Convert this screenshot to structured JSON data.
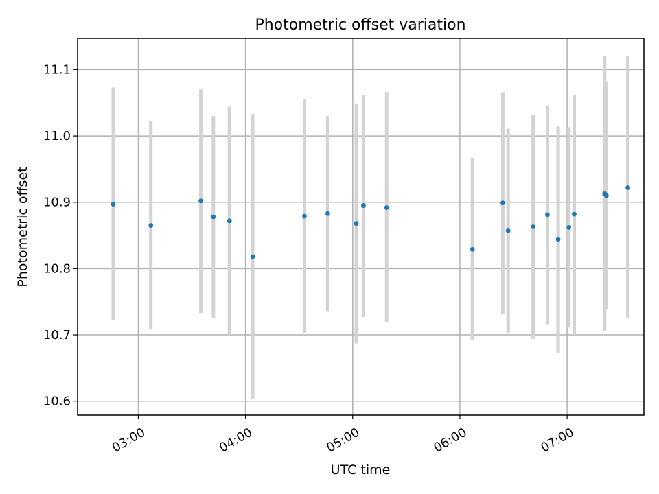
{
  "chart_data": {
    "type": "scatter",
    "title": "Photometric offset variation",
    "xlabel": "UTC time",
    "ylabel": "Photometric offset",
    "x_unit": "UTC time (HH:MM)",
    "xlim": [
      "02:26",
      "07:43"
    ],
    "ylim": [
      10.579,
      11.147
    ],
    "x_ticks": [
      "03:00",
      "04:00",
      "05:00",
      "06:00",
      "07:00"
    ],
    "y_ticks": [
      10.6,
      10.7,
      10.8,
      10.9,
      11.0,
      11.1
    ],
    "y_tick_labels": [
      "10.6",
      "10.7",
      "10.8",
      "10.9",
      "11.0",
      "11.1"
    ],
    "grid": true,
    "marker_color": "#1f77b4",
    "errorbar_color": "#d3d3d3",
    "points": [
      {
        "t": "02:46",
        "y": 10.897,
        "lo": 10.722,
        "hi": 11.073
      },
      {
        "t": "03:07",
        "y": 10.865,
        "lo": 10.708,
        "hi": 11.022
      },
      {
        "t": "03:35",
        "y": 10.902,
        "lo": 10.733,
        "hi": 11.071
      },
      {
        "t": "03:42",
        "y": 10.878,
        "lo": 10.726,
        "hi": 11.03
      },
      {
        "t": "03:51",
        "y": 10.872,
        "lo": 10.7,
        "hi": 11.044
      },
      {
        "t": "04:04",
        "y": 10.818,
        "lo": 10.604,
        "hi": 11.033
      },
      {
        "t": "04:33",
        "y": 10.879,
        "lo": 10.703,
        "hi": 11.056
      },
      {
        "t": "04:46",
        "y": 10.883,
        "lo": 10.735,
        "hi": 11.03
      },
      {
        "t": "05:02",
        "y": 10.868,
        "lo": 10.687,
        "hi": 11.049
      },
      {
        "t": "05:06",
        "y": 10.895,
        "lo": 10.727,
        "hi": 11.062
      },
      {
        "t": "05:19",
        "y": 10.892,
        "lo": 10.719,
        "hi": 11.066
      },
      {
        "t": "06:07",
        "y": 10.829,
        "lo": 10.692,
        "hi": 10.966
      },
      {
        "t": "06:24",
        "y": 10.899,
        "lo": 10.731,
        "hi": 11.066
      },
      {
        "t": "06:27",
        "y": 10.857,
        "lo": 10.703,
        "hi": 11.011
      },
      {
        "t": "06:41",
        "y": 10.863,
        "lo": 10.694,
        "hi": 11.032
      },
      {
        "t": "06:49",
        "y": 10.881,
        "lo": 10.716,
        "hi": 11.046
      },
      {
        "t": "06:55",
        "y": 10.844,
        "lo": 10.673,
        "hi": 11.014
      },
      {
        "t": "07:01",
        "y": 10.862,
        "lo": 10.711,
        "hi": 11.013
      },
      {
        "t": "07:04",
        "y": 10.882,
        "lo": 10.7,
        "hi": 11.062
      },
      {
        "t": "07:21",
        "y": 10.913,
        "lo": 10.706,
        "hi": 11.12
      },
      {
        "t": "07:22",
        "y": 10.91,
        "lo": 10.738,
        "hi": 11.082
      },
      {
        "t": "07:34",
        "y": 10.922,
        "lo": 10.725,
        "hi": 11.12
      }
    ]
  }
}
